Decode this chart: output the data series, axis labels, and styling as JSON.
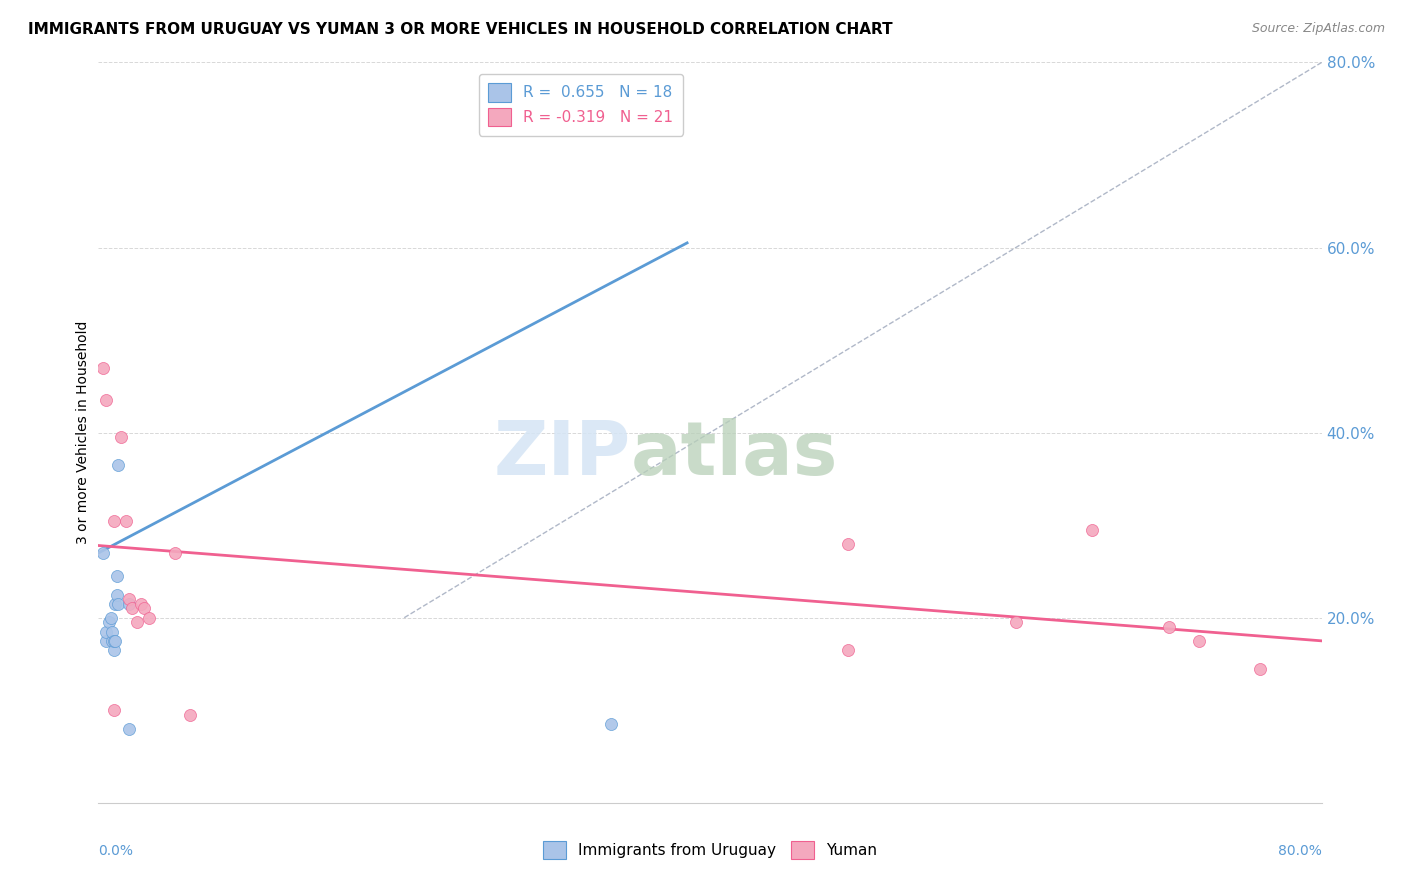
{
  "title": "IMMIGRANTS FROM URUGUAY VS YUMAN 3 OR MORE VEHICLES IN HOUSEHOLD CORRELATION CHART",
  "source": "Source: ZipAtlas.com",
  "ylabel": "3 or more Vehicles in Household",
  "xmin": 0.0,
  "xmax": 0.8,
  "ymin": 0.0,
  "ymax": 0.8,
  "yticks": [
    0.0,
    0.2,
    0.4,
    0.6,
    0.8
  ],
  "xticks": [
    0.0,
    0.1,
    0.2,
    0.3,
    0.4,
    0.5,
    0.6,
    0.7,
    0.8
  ],
  "blue_R": "0.655",
  "blue_N": "18",
  "pink_R": "-0.319",
  "pink_N": "21",
  "blue_color": "#aac4e8",
  "pink_color": "#f4a8be",
  "blue_line_color": "#5b9bd5",
  "pink_line_color": "#f06090",
  "diagonal_color": "#b0b8c8",
  "legend_label_blue": "Immigrants from Uruguay",
  "legend_label_pink": "Yuman",
  "blue_points_x": [
    0.003,
    0.005,
    0.005,
    0.007,
    0.008,
    0.009,
    0.009,
    0.01,
    0.01,
    0.011,
    0.011,
    0.012,
    0.012,
    0.013,
    0.013,
    0.02,
    0.02,
    0.335
  ],
  "blue_points_y": [
    0.27,
    0.175,
    0.185,
    0.195,
    0.2,
    0.175,
    0.185,
    0.165,
    0.175,
    0.175,
    0.215,
    0.245,
    0.225,
    0.215,
    0.365,
    0.215,
    0.08,
    0.085
  ],
  "pink_points_x": [
    0.003,
    0.005,
    0.01,
    0.01,
    0.015,
    0.018,
    0.02,
    0.022,
    0.025,
    0.028,
    0.03,
    0.033,
    0.05,
    0.06,
    0.49,
    0.49,
    0.6,
    0.65,
    0.7,
    0.72,
    0.76
  ],
  "pink_points_y": [
    0.47,
    0.435,
    0.305,
    0.1,
    0.395,
    0.305,
    0.22,
    0.21,
    0.195,
    0.215,
    0.21,
    0.2,
    0.27,
    0.095,
    0.28,
    0.165,
    0.195,
    0.295,
    0.19,
    0.175,
    0.145
  ],
  "blue_line_x": [
    0.0,
    0.385
  ],
  "blue_line_y": [
    0.27,
    0.605
  ],
  "pink_line_x": [
    0.0,
    0.8
  ],
  "pink_line_y": [
    0.278,
    0.175
  ],
  "diag_line_x": [
    0.2,
    0.8
  ],
  "diag_line_y": [
    0.2,
    0.8
  ]
}
